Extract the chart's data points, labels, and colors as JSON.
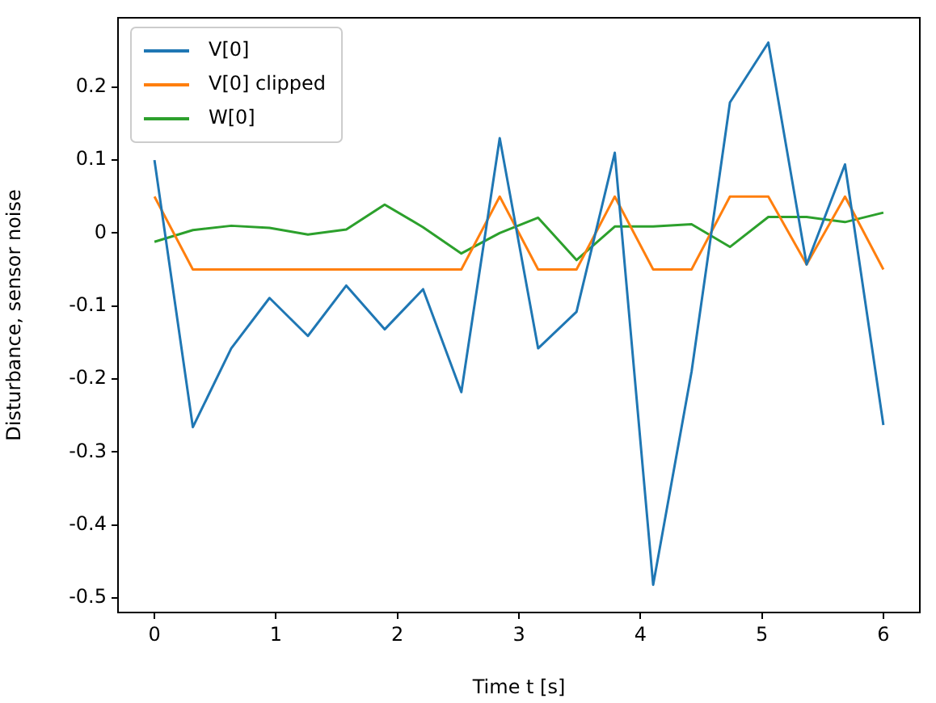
{
  "chart_data": {
    "type": "line",
    "xlabel": "Time t [s]",
    "ylabel": "Disturbance, sensor noise",
    "x": [
      0,
      0.316,
      0.632,
      0.947,
      1.263,
      1.579,
      1.895,
      2.211,
      2.526,
      2.842,
      3.158,
      3.474,
      3.789,
      4.105,
      4.421,
      4.737,
      5.053,
      5.368,
      5.684,
      6
    ],
    "series": [
      {
        "name": "V[0]",
        "color": "#1f77b4",
        "values": [
          0.1,
          -0.266,
          -0.158,
          -0.089,
          -0.141,
          -0.072,
          -0.132,
          -0.077,
          -0.218,
          0.13,
          -0.158,
          -0.108,
          0.11,
          -0.482,
          -0.19,
          0.179,
          0.261,
          -0.043,
          0.094,
          -0.263
        ]
      },
      {
        "name": "V[0] clipped",
        "color": "#ff7f0e",
        "values": [
          0.05,
          -0.05,
          -0.05,
          -0.05,
          -0.05,
          -0.05,
          -0.05,
          -0.05,
          -0.05,
          0.05,
          -0.05,
          -0.05,
          0.05,
          -0.05,
          -0.05,
          0.05,
          0.05,
          -0.043,
          0.05,
          -0.05
        ]
      },
      {
        "name": "W[0]",
        "color": "#2ca02c",
        "values": [
          -0.012,
          0.004,
          0.01,
          0.007,
          -0.002,
          0.005,
          0.039,
          0.008,
          -0.028,
          0.0,
          0.021,
          -0.037,
          0.009,
          0.009,
          0.012,
          -0.019,
          0.022,
          0.022,
          0.015,
          0.028
        ]
      }
    ],
    "xlim": [
      -0.3,
      6.3
    ],
    "xticks": [
      0,
      1,
      2,
      3,
      4,
      5,
      6
    ],
    "ylim": [
      -0.52,
      0.295
    ],
    "yticks": [
      -0.5,
      -0.4,
      -0.3,
      -0.2,
      -0.1,
      0.0,
      0.1,
      0.2
    ],
    "grid": false,
    "legend": "top left",
    "marker": "none",
    "line_style": "solid"
  }
}
